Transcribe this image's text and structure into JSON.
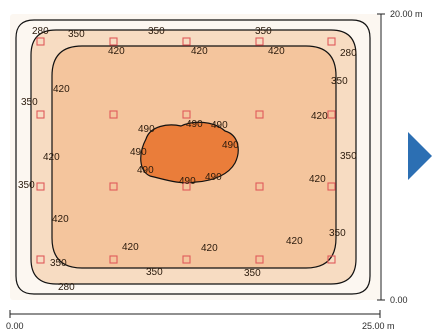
{
  "axis": {
    "x_start": "0.00",
    "x_end": "25.00 m",
    "y_start": "0.00",
    "y_end": "20.00 m"
  },
  "contours": {
    "values": [
      "280",
      "350",
      "420",
      "490"
    ]
  },
  "colors": {
    "background_light": "#fcf7f1",
    "mid_fill": "#f7dcc2",
    "inner_fill": "#f4c59d",
    "core_fill": "#ea7d3a",
    "line": "#111111",
    "marker": "#e05a5a",
    "arrow": "#2c6fb3"
  },
  "icons": {
    "next": "triangle-right-icon",
    "marker": "square-marker-icon"
  }
}
